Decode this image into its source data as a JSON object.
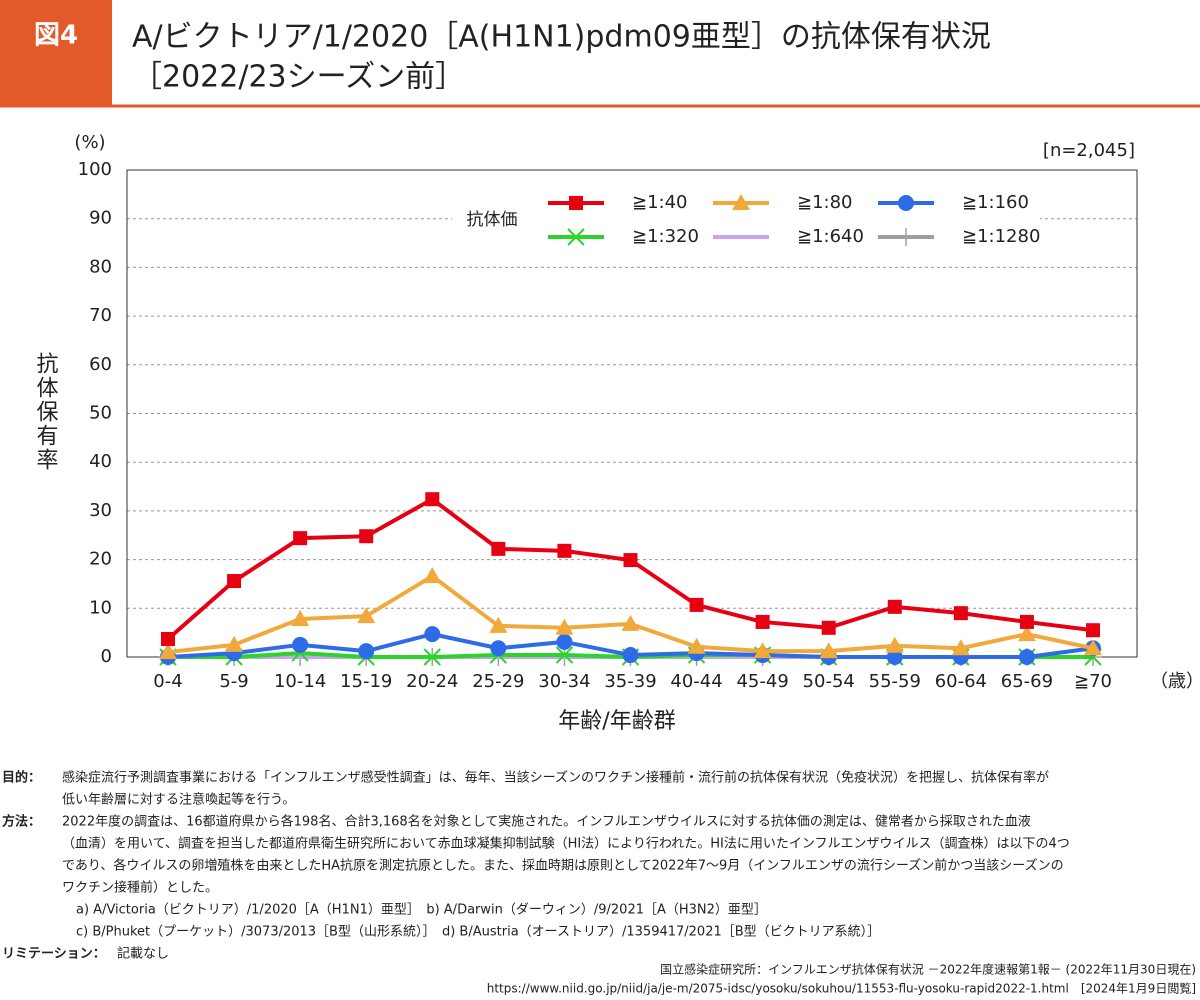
{
  "figure_label": "図4",
  "chart_data": {
    "type": "line",
    "title": [
      "A/ビクトリア/1/2020［A(H1N1)pdm09亜型］の抗体保有状況",
      "［2022/23シーズン前］"
    ],
    "y_unit": "(%)",
    "sample_size": "[n=2,045]",
    "y_label": "抗体保有率",
    "x_unit": "（歳）",
    "x_label": "年齢/年齢群",
    "legend_title": "抗体価",
    "categories": [
      "0-4",
      "5-9",
      "10-14",
      "15-19",
      "20-24",
      "25-29",
      "30-34",
      "35-39",
      "40-44",
      "45-49",
      "50-54",
      "55-59",
      "60-64",
      "65-69",
      "≧70"
    ],
    "series": [
      {
        "name": "≧1:40",
        "color": "#e60012",
        "marker": "square",
        "values": [
          3.7,
          15.6,
          24.4,
          24.8,
          32.4,
          22.2,
          21.8,
          19.9,
          10.7,
          7.2,
          6.0,
          10.3,
          9.0,
          7.2,
          5.5
        ]
      },
      {
        "name": "≧1:80",
        "color": "#f2a93b",
        "marker": "triangle",
        "values": [
          1.0,
          2.5,
          7.8,
          8.4,
          16.6,
          6.4,
          6.0,
          6.8,
          2.1,
          1.2,
          1.2,
          2.3,
          1.8,
          4.7,
          1.8
        ]
      },
      {
        "name": "≧1:160",
        "color": "#2e6be6",
        "marker": "circle",
        "values": [
          0,
          0.8,
          2.5,
          1.2,
          4.7,
          1.8,
          3.1,
          0.4,
          0.8,
          0.4,
          0,
          0,
          0,
          0,
          1.8
        ]
      },
      {
        "name": "≧1:320",
        "color": "#2bd42b",
        "marker": "x",
        "values": [
          0,
          0,
          0.8,
          0,
          0,
          0.4,
          0.4,
          0,
          0.4,
          0.4,
          0,
          0,
          0,
          0,
          0
        ]
      },
      {
        "name": "≧1:640",
        "color": "#c9a3f0",
        "marker": "none",
        "values": [
          0,
          0,
          0,
          0,
          0,
          0,
          0,
          0,
          0,
          0,
          0,
          0,
          0,
          0,
          0
        ]
      },
      {
        "name": "≧1:1280",
        "color": "#a0a0a0",
        "marker": "plus",
        "values": [
          0,
          0,
          0,
          0,
          0,
          0,
          0,
          0,
          0,
          0,
          0,
          0,
          0,
          0,
          0
        ]
      }
    ],
    "ylim": [
      0,
      100
    ],
    "yticks": [
      0,
      10,
      20,
      30,
      40,
      50,
      60,
      70,
      80,
      90,
      100
    ],
    "grid": true
  },
  "notes": [
    {
      "label": "目的：",
      "lines": [
        "感染症流行予測調査事業における「インフルエンザ感受性調査」は、毎年、当該シーズンのワクチン接種前・流行前の抗体保有状況（免疫状況）を把握し、抗体保有率が",
        "低い年齢層に対する注意喚起等を行う。"
      ]
    },
    {
      "label": "方法：",
      "lines": [
        "2022年度の調査は、16都道府県から各198名、合計3,168名を対象として実施された。インフルエンザウイルスに対する抗体価の測定は、健常者から採取された血液",
        "（血清）を用いて、調査を担当した都道府県衛生研究所において赤血球凝集抑制試験（HI法）により行われた。HI法に用いたインフルエンザウイルス（調査株）は以下の4つ",
        "であり、各ウイルスの卵増殖株を由来としたHA抗原を測定抗原とした。また、採血時期は原則として2022年7〜9月（インフルエンザの流行シーズン前かつ当該シーズンの",
        "ワクチン接種前）とした。",
        "a) A/Victoria（ビクトリア）/1/2020［A（H1N1）亜型］　b) A/Darwin（ダーウィン）/9/2021［A（H3N2）亜型］",
        "c) B/Phuket（プーケット）/3073/2013［B型（山形系統）］　d) B/Austria（オーストリア）/1359417/2021［B型（ビクトリア系統）］"
      ]
    },
    {
      "label": "リミテーション：",
      "lines": [
        "記載なし"
      ]
    }
  ],
  "source": [
    "国立感染症研究所：インフルエンザ抗体保有状況 －2022年度速報第1報－ (2022年11月30日現在)",
    "https://www.niid.go.jp/niid/ja/je-m/2075-idsc/yosoku/sokuhou/11553-flu-yosoku-rapid2022-1.html　[2024年1月9日閲覧]"
  ]
}
